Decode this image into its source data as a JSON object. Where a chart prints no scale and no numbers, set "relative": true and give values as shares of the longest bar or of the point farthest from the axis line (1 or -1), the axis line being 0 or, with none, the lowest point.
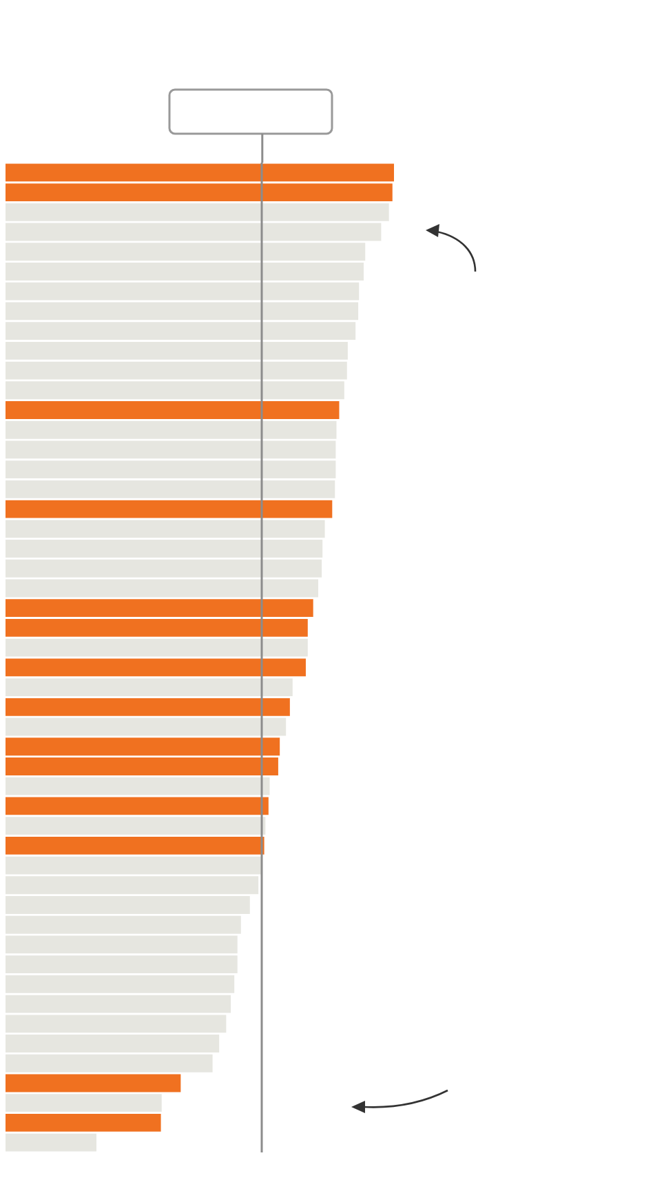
{
  "chart_data": {
    "type": "bar",
    "orientation": "horizontal",
    "relative": true,
    "categories": [
      null,
      null,
      null,
      null,
      null,
      null,
      null,
      null,
      null,
      null,
      null,
      null,
      null,
      null,
      null,
      null,
      null,
      null,
      null,
      null,
      null,
      null,
      null,
      null,
      null,
      null,
      null,
      null,
      null,
      null,
      null,
      null,
      null,
      null,
      null,
      null,
      null,
      null,
      null,
      null,
      null,
      null,
      null,
      null,
      null,
      null,
      null,
      null,
      null,
      null
    ],
    "values": [
      1.0,
      0.996,
      0.987,
      0.967,
      0.926,
      0.922,
      0.91,
      0.908,
      0.901,
      0.881,
      0.879,
      0.872,
      0.859,
      0.852,
      0.85,
      0.85,
      0.848,
      0.841,
      0.822,
      0.816,
      0.814,
      0.805,
      0.792,
      0.778,
      0.778,
      0.773,
      0.739,
      0.732,
      0.722,
      0.706,
      0.702,
      0.68,
      0.677,
      0.669,
      0.666,
      0.66,
      0.651,
      0.629,
      0.606,
      0.597,
      0.597,
      0.589,
      0.58,
      0.568,
      0.55,
      0.533,
      0.451,
      0.402,
      0.4,
      0.234
    ],
    "colors": [
      "#f07120",
      "#f07120",
      "#e6e6e0",
      "#e6e6e0",
      "#e6e6e0",
      "#e6e6e0",
      "#e6e6e0",
      "#e6e6e0",
      "#e6e6e0",
      "#e6e6e0",
      "#e6e6e0",
      "#e6e6e0",
      "#f07120",
      "#e6e6e0",
      "#e6e6e0",
      "#e6e6e0",
      "#e6e6e0",
      "#f07120",
      "#e6e6e0",
      "#e6e6e0",
      "#e6e6e0",
      "#e6e6e0",
      "#f07120",
      "#f07120",
      "#e6e6e0",
      "#f07120",
      "#e6e6e0",
      "#f07120",
      "#e6e6e0",
      "#f07120",
      "#f07120",
      "#e6e6e0",
      "#f07120",
      "#e6e6e0",
      "#f07120",
      "#e6e6e0",
      "#e6e6e0",
      "#e6e6e0",
      "#e6e6e0",
      "#e6e6e0",
      "#e6e6e0",
      "#e6e6e0",
      "#e6e6e0",
      "#e6e6e0",
      "#e6e6e0",
      "#e6e6e0",
      "#f07120",
      "#e6e6e0",
      "#f07120",
      "#e6e6e0"
    ],
    "ref_lines": [
      {
        "axis": "x",
        "value": 0.661,
        "color": "#8c8c8c"
      }
    ]
  }
}
